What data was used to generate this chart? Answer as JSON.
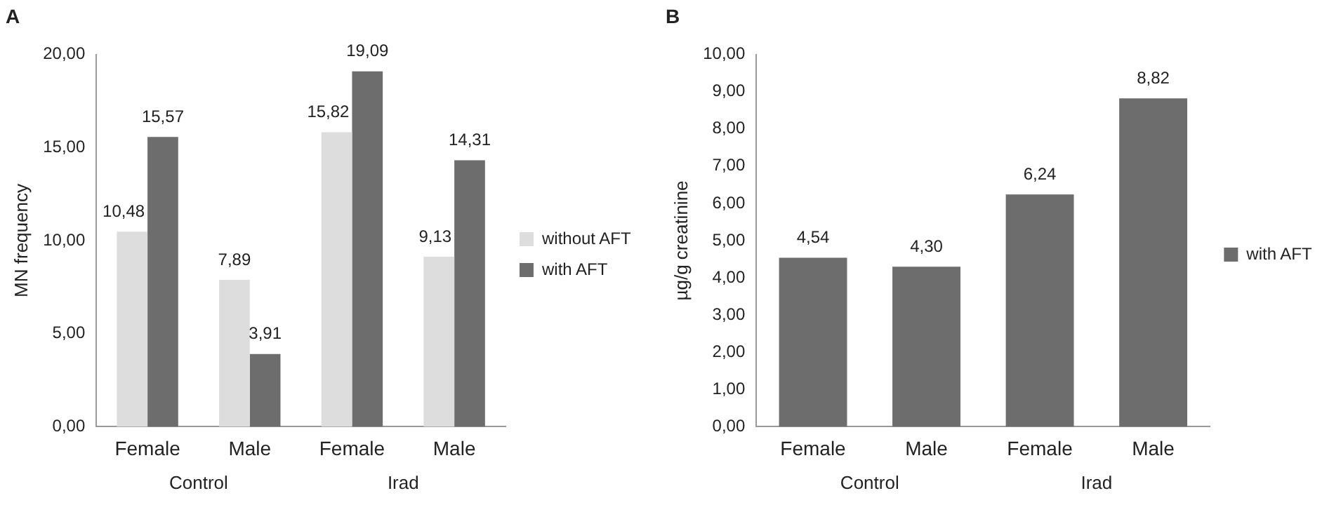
{
  "chart_data": [
    {
      "type": "bar",
      "title": "A",
      "ylabel": "MN frequency",
      "categories": [
        "Female",
        "Male",
        "Female",
        "Male"
      ],
      "annotations": [
        "Control",
        "Irad"
      ],
      "series": [
        {
          "name": "without AFT",
          "color": "#dddddd",
          "values": [
            10.48,
            7.89,
            15.82,
            9.13
          ],
          "value_labels": [
            "10,48",
            "7,89",
            "15,82",
            "9,13"
          ]
        },
        {
          "name": "with AFT",
          "color": "#6d6d6d",
          "values": [
            15.57,
            3.91,
            19.09,
            14.31
          ],
          "value_labels": [
            "15,57",
            "3,91",
            "19,09",
            "14,31"
          ]
        }
      ],
      "ylim": [
        0,
        20
      ],
      "yticks": [
        {
          "value": 0,
          "label": "0,00"
        },
        {
          "value": 5,
          "label": "5,00"
        },
        {
          "value": 10,
          "label": "10,00"
        },
        {
          "value": 15,
          "label": "15,00"
        },
        {
          "value": 20,
          "label": "20,00"
        }
      ],
      "grid": false,
      "legend": "right"
    },
    {
      "type": "bar",
      "title": "B",
      "ylabel": "µg/g creatinine",
      "categories": [
        "Female",
        "Male",
        "Female",
        "Male"
      ],
      "annotations": [
        "Control",
        "Irad"
      ],
      "series": [
        {
          "name": "with AFT",
          "color": "#6d6d6d",
          "values": [
            4.54,
            4.3,
            6.24,
            8.82
          ],
          "value_labels": [
            "4,54",
            "4,30",
            "6,24",
            "8,82"
          ]
        }
      ],
      "ylim": [
        0,
        10
      ],
      "yticks": [
        {
          "value": 0,
          "label": "0,00"
        },
        {
          "value": 1,
          "label": "1,00"
        },
        {
          "value": 2,
          "label": "2,00"
        },
        {
          "value": 3,
          "label": "3,00"
        },
        {
          "value": 4,
          "label": "4,00"
        },
        {
          "value": 5,
          "label": "5,00"
        },
        {
          "value": 6,
          "label": "6,00"
        },
        {
          "value": 7,
          "label": "7,00"
        },
        {
          "value": 8,
          "label": "8,00"
        },
        {
          "value": 9,
          "label": "9,00"
        },
        {
          "value": 10,
          "label": "10,00"
        }
      ],
      "grid": false,
      "legend": "right"
    }
  ]
}
